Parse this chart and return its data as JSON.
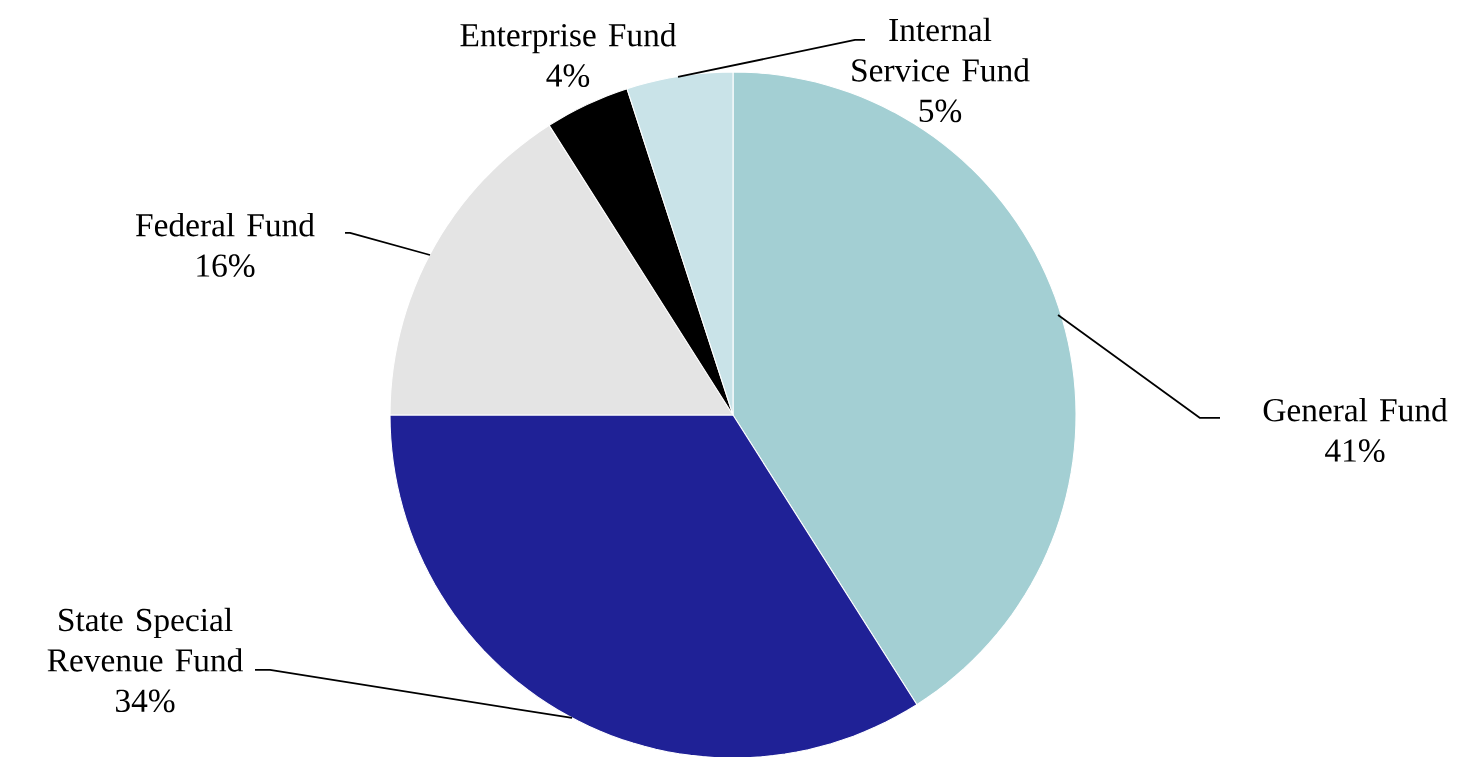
{
  "chart_data": {
    "type": "pie",
    "categories": [
      "General Fund",
      "State Special Revenue Fund",
      "Federal Fund",
      "Enterprise Fund",
      "Internal Service Fund"
    ],
    "values": [
      41,
      34,
      16,
      4,
      5
    ],
    "value_labels": [
      "41%",
      "34%",
      "16%",
      "4%",
      "5%"
    ],
    "colors": [
      "#a3cfd3",
      "#1f2196",
      "#e4e4e4",
      "#000000",
      "#c9e3e8"
    ]
  }
}
